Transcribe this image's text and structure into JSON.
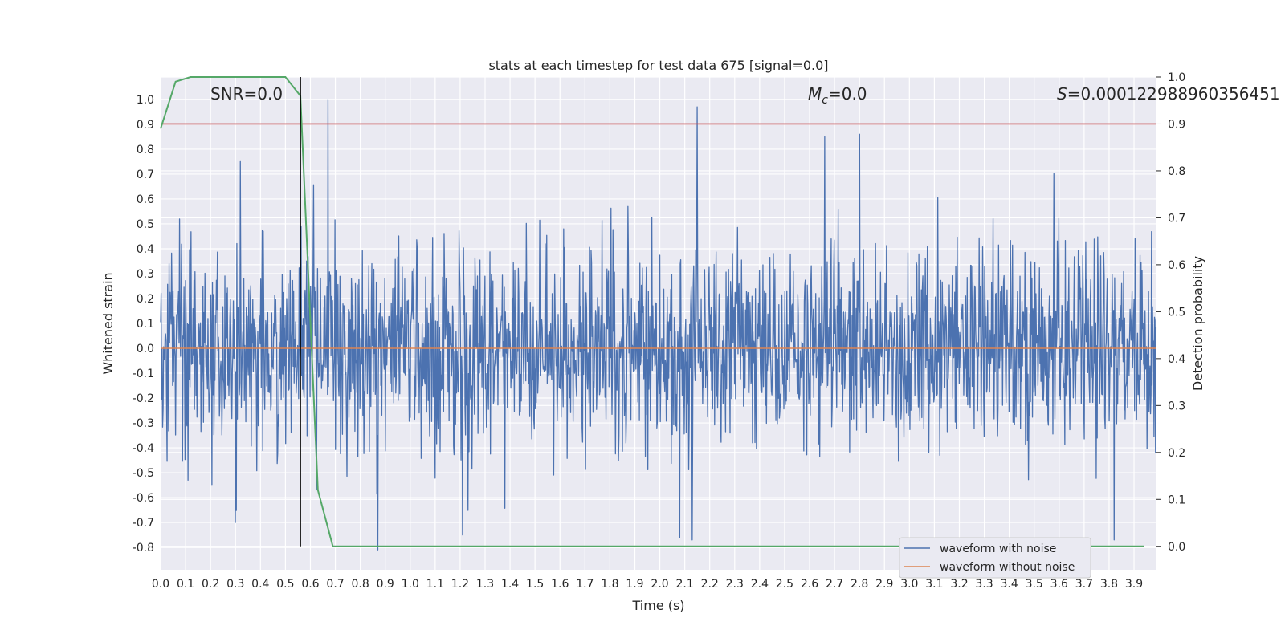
{
  "chart_data": {
    "type": "line",
    "title": "stats at each timestep for test data 675 [signal=0.0]",
    "xlabel": "Time (s)",
    "ylabel": "Whitened strain",
    "y2label": "Detection probability",
    "xlim": [
      0.0,
      3.99
    ],
    "ylim": [
      -0.89,
      1.09
    ],
    "y2lim": [
      -0.05,
      1.0
    ],
    "xticks": [
      "0.0",
      "0.1",
      "0.2",
      "0.3",
      "0.4",
      "0.5",
      "0.6",
      "0.7",
      "0.8",
      "0.9",
      "1.0",
      "1.1",
      "1.2",
      "1.3",
      "1.4",
      "1.5",
      "1.6",
      "1.7",
      "1.8",
      "1.9",
      "2.0",
      "2.1",
      "2.2",
      "2.3",
      "2.4",
      "2.5",
      "2.6",
      "2.7",
      "2.8",
      "2.9",
      "3.0",
      "3.1",
      "3.2",
      "3.3",
      "3.4",
      "3.5",
      "3.6",
      "3.7",
      "3.8",
      "3.9"
    ],
    "yticks": [
      "-0.8",
      "-0.7",
      "-0.6",
      "-0.5",
      "-0.4",
      "-0.3",
      "-0.2",
      "-0.1",
      "0.0",
      "0.1",
      "0.2",
      "0.3",
      "0.4",
      "0.5",
      "0.6",
      "0.7",
      "0.8",
      "0.9",
      "1.0"
    ],
    "y2ticks": [
      "0.0",
      "0.1",
      "0.2",
      "0.3",
      "0.4",
      "0.5",
      "0.6",
      "0.7",
      "0.8",
      "0.9",
      "1.0"
    ],
    "grid": true,
    "legend_position": "lower-right",
    "annotations": {
      "snr": "SNR=0.0",
      "mc_symbol": "M",
      "mc_sub": "c",
      "mc_value": "=0.0",
      "s_symbol": "S",
      "s_value": "=0.000122988960356451"
    },
    "series": [
      {
        "name": "waveform with noise",
        "color": "#4c72b0",
        "noise_seed": 675,
        "sample_count": 2000,
        "peaks": [
          [
            0.67,
            1.0
          ],
          [
            2.15,
            0.97
          ],
          [
            2.8,
            0.86
          ],
          [
            2.66,
            0.85
          ],
          [
            0.32,
            0.75
          ],
          [
            0.87,
            -0.81
          ],
          [
            2.13,
            -0.77
          ],
          [
            3.82,
            -0.77
          ],
          [
            2.08,
            -0.76
          ],
          [
            1.21,
            -0.75
          ],
          [
            0.3,
            -0.7
          ]
        ]
      },
      {
        "name": "waveform without noise",
        "color": "#dd8452",
        "value": 0.0
      }
    ],
    "detection_probability": {
      "color": "#55a868",
      "x": [
        0.0,
        0.06,
        0.12,
        0.2,
        0.3,
        0.4,
        0.5,
        0.56,
        0.63,
        0.69,
        1.0,
        2.0,
        3.0,
        3.94
      ],
      "y": [
        0.89,
        0.99,
        1.0,
        1.0,
        1.0,
        1.0,
        1.0,
        0.96,
        0.12,
        0.0,
        0.0,
        0.0,
        0.0,
        0.0
      ]
    },
    "threshold": {
      "value": 0.9,
      "color": "#c44e52"
    },
    "vertical_marker": {
      "x": 0.56,
      "color": "#000000"
    }
  }
}
